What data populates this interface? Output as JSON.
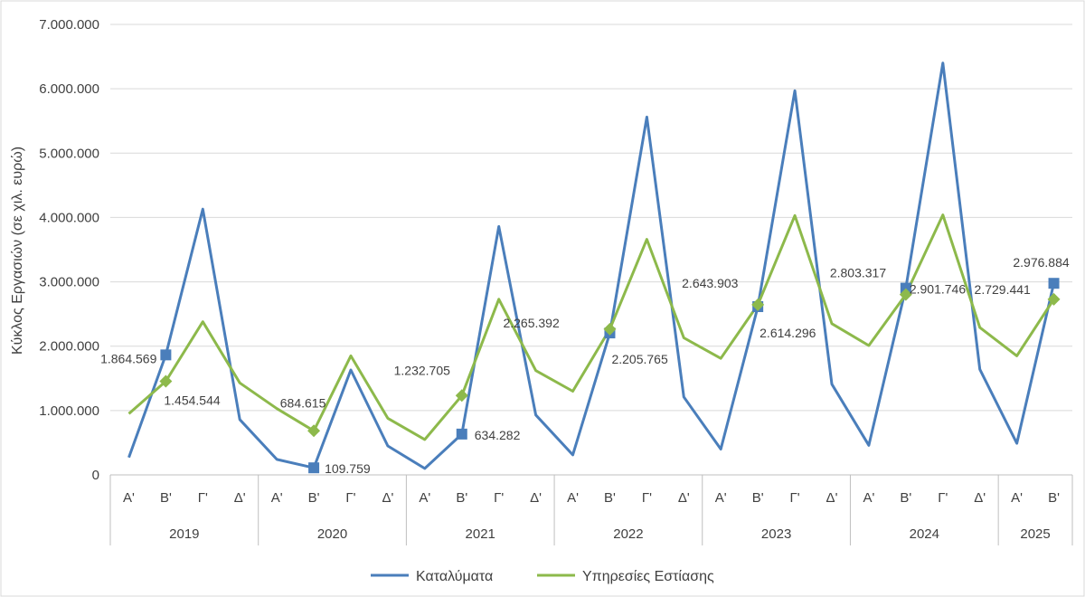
{
  "chart_data": {
    "type": "line",
    "ylabel": "Κύκλος Εργασιών (σε χιλ. ευρώ)",
    "ylim": [
      0,
      7000000
    ],
    "yticks": [
      "0",
      "1.000.000",
      "2.000.000",
      "3.000.000",
      "4.000.000",
      "5.000.000",
      "6.000.000",
      "7.000.000"
    ],
    "years": [
      {
        "label": "2019",
        "quarters": [
          "Α'",
          "Β'",
          "Γ'",
          "Δ'"
        ]
      },
      {
        "label": "2020",
        "quarters": [
          "Α'",
          "Β'",
          "Γ'",
          "Δ'"
        ]
      },
      {
        "label": "2021",
        "quarters": [
          "Α'",
          "Β'",
          "Γ'",
          "Δ'"
        ]
      },
      {
        "label": "2022",
        "quarters": [
          "Α'",
          "Β'",
          "Γ'",
          "Δ'"
        ]
      },
      {
        "label": "2023",
        "quarters": [
          "Α'",
          "Β'",
          "Γ'",
          "Δ'"
        ]
      },
      {
        "label": "2024",
        "quarters": [
          "Α'",
          "Β'",
          "Γ'",
          "Δ'"
        ]
      },
      {
        "label": "2025",
        "quarters": [
          "Α'",
          "Β'"
        ]
      }
    ],
    "series": [
      {
        "name": "Καταλύματα",
        "color": "#4a7ebb",
        "values": [
          270000,
          1864569,
          4130000,
          860000,
          240000,
          109759,
          1630000,
          450000,
          100000,
          634282,
          3860000,
          930000,
          310000,
          2205765,
          5560000,
          1210000,
          400000,
          2614296,
          5970000,
          1410000,
          460000,
          2901746,
          6400000,
          1640000,
          490000,
          2976884
        ],
        "labels": [
          {
            "index": 1,
            "text": "1.864.569"
          },
          {
            "index": 5,
            "text": "109.759"
          },
          {
            "index": 9,
            "text": "634.282"
          },
          {
            "index": 13,
            "text": "2.205.765"
          },
          {
            "index": 17,
            "text": "2.614.296"
          },
          {
            "index": 21,
            "text": "2.901.746"
          },
          {
            "index": 25,
            "text": "2.976.884"
          }
        ]
      },
      {
        "name": "Υπηρεσίες Εστίασης",
        "color": "#8db94b",
        "values": [
          950000,
          1454544,
          2380000,
          1430000,
          1030000,
          684615,
          1850000,
          880000,
          550000,
          1232705,
          2730000,
          1620000,
          1300000,
          2265392,
          3660000,
          2130000,
          1810000,
          2643903,
          4030000,
          2350000,
          2010000,
          2803317,
          4040000,
          2290000,
          1850000,
          2729441
        ],
        "labels": [
          {
            "index": 1,
            "text": "1.454.544"
          },
          {
            "index": 5,
            "text": "684.615"
          },
          {
            "index": 9,
            "text": "1.232.705"
          },
          {
            "index": 13,
            "text": "2.265.392"
          },
          {
            "index": 17,
            "text": "2.643.903"
          },
          {
            "index": 21,
            "text": "2.803.317"
          },
          {
            "index": 25,
            "text": "2.729.441"
          }
        ]
      }
    ],
    "legend": "bottom",
    "grid": true
  }
}
